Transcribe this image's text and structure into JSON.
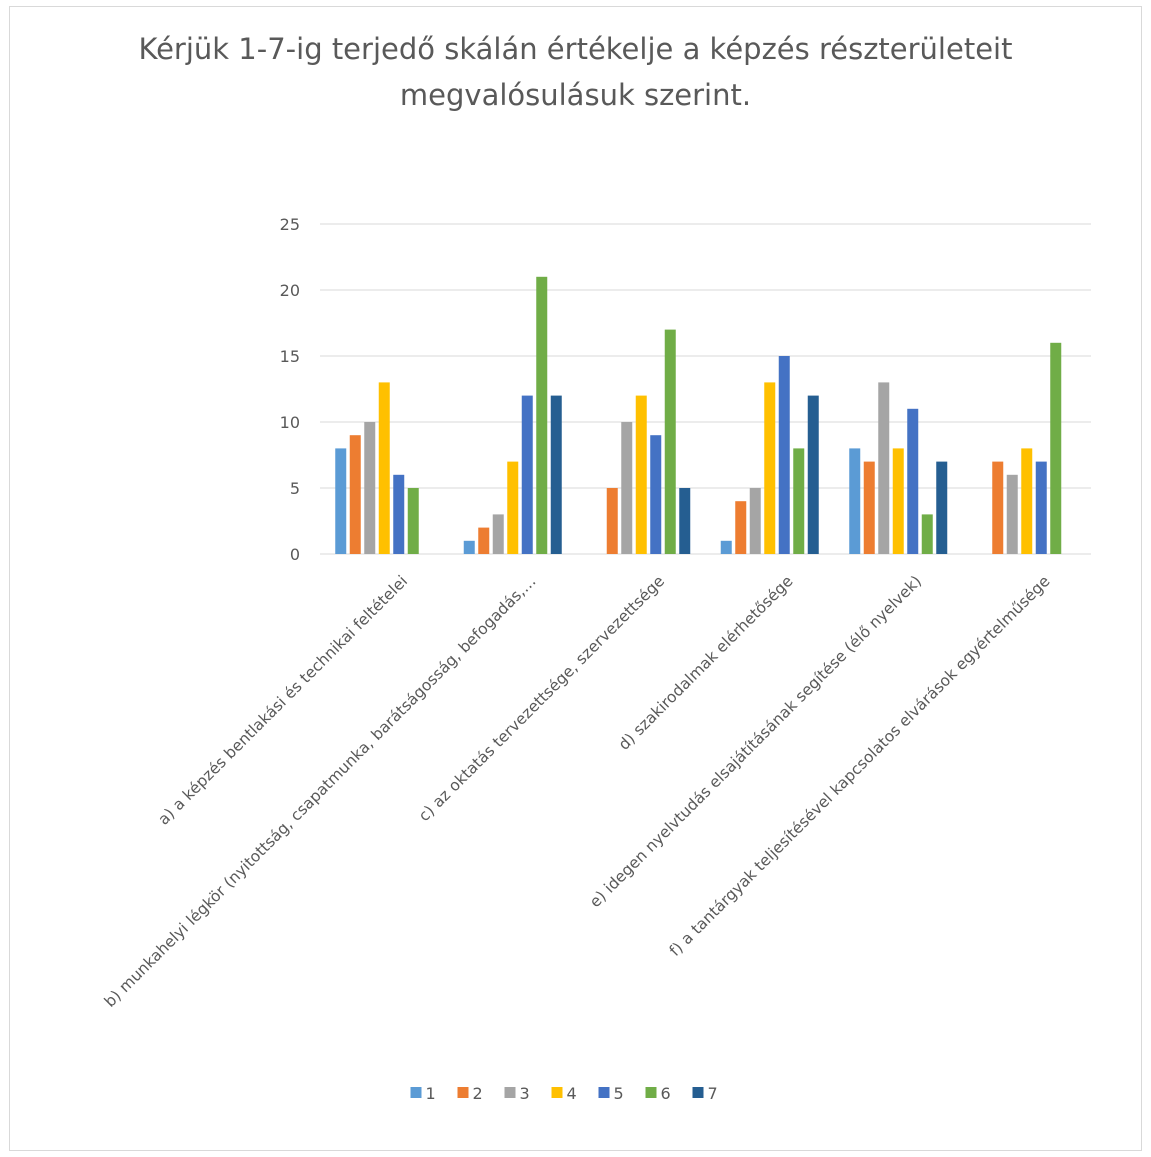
{
  "chart_data": {
    "type": "bar",
    "title_lines": [
      "Kérjük 1-7-ig terjedő skálán értékelje a képzés részterületeit",
      "megvalósulásuk szerint."
    ],
    "categories": [
      "a) a képzés bentlakási és technikai feltételei",
      "b) munkahelyi légkör (nyitottság, csapatmunka, barátságosság, befogadás,…",
      "c) az oktatás tervezettsége, szervezettsége",
      "d) szakirodalmak elérhetősége",
      "e) idegen nyelvtudás elsajátításának segítése (élő nyelvek)",
      "f) a tantárgyak teljesítésével kapcsolatos elvárások egyértelműsége"
    ],
    "series": [
      {
        "name": "1",
        "color": "#5B9BD5",
        "values": [
          8,
          1,
          0,
          1,
          8,
          0
        ]
      },
      {
        "name": "2",
        "color": "#ED7D31",
        "values": [
          9,
          2,
          5,
          4,
          7,
          7
        ]
      },
      {
        "name": "3",
        "color": "#A5A5A5",
        "values": [
          10,
          3,
          10,
          5,
          13,
          6
        ]
      },
      {
        "name": "4",
        "color": "#FFC000",
        "values": [
          13,
          7,
          12,
          13,
          8,
          8
        ]
      },
      {
        "name": "5",
        "color": "#4472C4",
        "values": [
          6,
          12,
          9,
          15,
          11,
          7
        ]
      },
      {
        "name": "6",
        "color": "#70AD47",
        "values": [
          5,
          21,
          17,
          8,
          3,
          16
        ]
      },
      {
        "name": "7",
        "color": "#255E91",
        "values": [
          0,
          12,
          5,
          12,
          7,
          0
        ]
      }
    ],
    "ylim": [
      0,
      25
    ],
    "yticks": [
      0,
      5,
      10,
      15,
      20,
      25
    ],
    "grid": true,
    "legend_position": "bottom"
  }
}
